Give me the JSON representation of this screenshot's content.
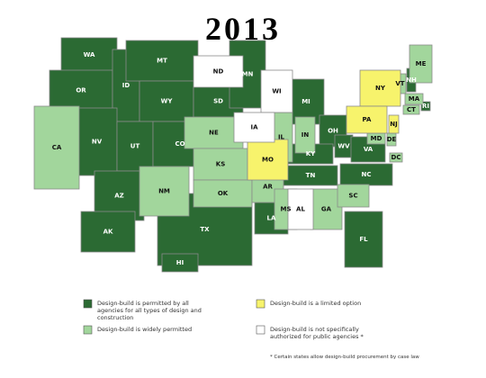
{
  "title": "2013",
  "legend": [
    {
      "label": "Design-build is permitted by all agencies for all types of design and construction",
      "color": "#2b6a33",
      "states": [
        "WA",
        "OR",
        "ID",
        "MT",
        "WY",
        "NV",
        "UT",
        "CO",
        "AZ",
        "SD",
        "MN",
        "TX",
        "LA",
        "MI",
        "OH",
        "WV",
        "VA",
        "NC",
        "KY",
        "TN",
        "FL",
        "AK",
        "HI",
        "NH",
        "RI"
      ]
    },
    {
      "label": "Design-build is widely permitted",
      "color": "#a2d69c",
      "states": [
        "CA",
        "NM",
        "NE",
        "KS",
        "OK",
        "AR",
        "MS",
        "GA",
        "SC",
        "IL",
        "IN",
        "ME",
        "VT",
        "MA",
        "CT",
        "MD",
        "DE",
        "DC"
      ]
    },
    {
      "label": "Design-build is a limited option",
      "color": "#f7f36c",
      "states": [
        "MO",
        "NY",
        "PA",
        "NJ"
      ]
    },
    {
      "label": "Design-build is not specifically authorized for public agencies *",
      "color": "#ffffff",
      "states": [
        "ND",
        "WI",
        "IA",
        "AL"
      ]
    }
  ],
  "footnote": "* Certain states allow design-build procurement by case law"
}
